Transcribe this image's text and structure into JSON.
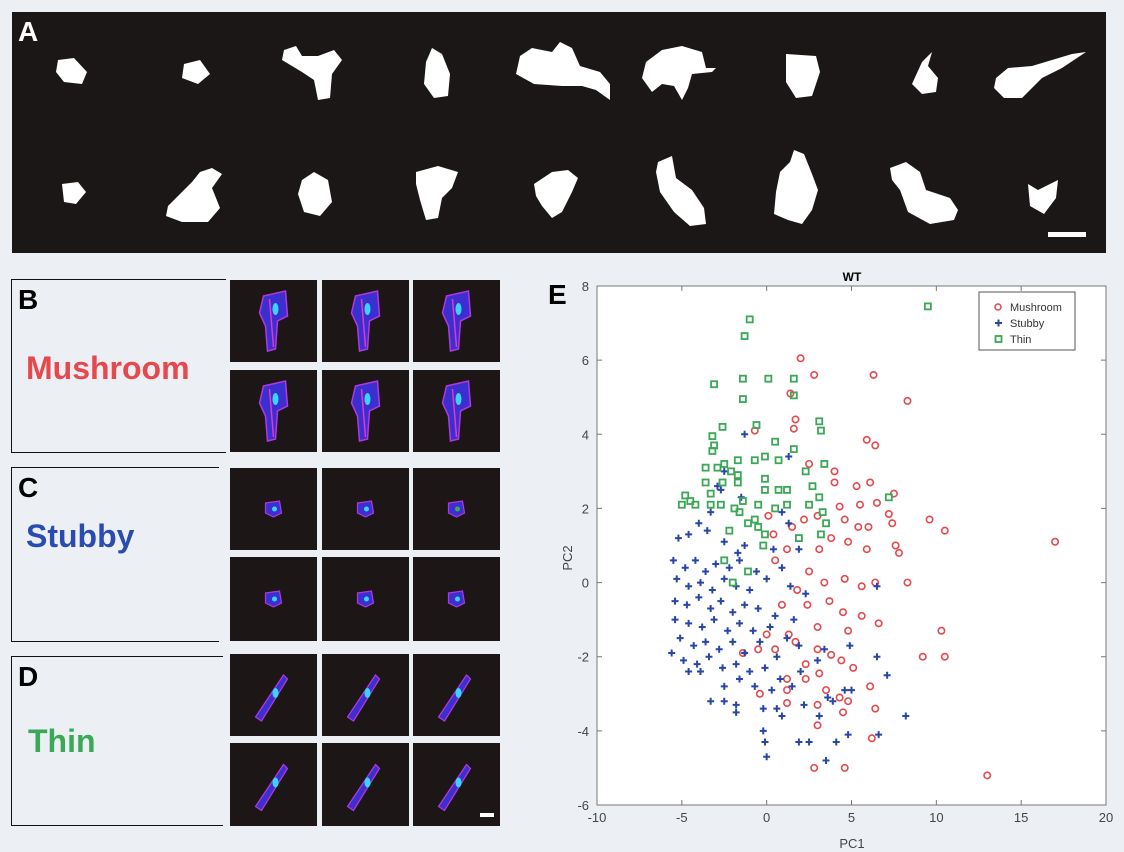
{
  "panels": {
    "a": {
      "label": "A"
    },
    "b": {
      "label": "B",
      "class_name": "Mushroom"
    },
    "c": {
      "label": "C",
      "class_name": "Stubby"
    },
    "d": {
      "label": "D",
      "class_name": "Thin"
    },
    "e": {
      "label": "E"
    }
  },
  "colors": {
    "mushroom": "#e5484d",
    "stubby": "#2846a8",
    "thin": "#3aa857",
    "background": "#ecf0f4"
  },
  "chart_data": {
    "type": "scatter",
    "title": "WT",
    "xlabel": "PC1",
    "ylabel": "PC2",
    "xlim": [
      -10,
      20
    ],
    "ylim": [
      -6,
      8
    ],
    "xticks": [
      "-10",
      "-5",
      "0",
      "5",
      "10",
      "15",
      "20"
    ],
    "yticks": [
      "-6",
      "-4",
      "-2",
      "0",
      "2",
      "4",
      "6",
      "8"
    ],
    "legend_position": "top-right",
    "grid": false,
    "series": [
      {
        "name": "Mushroom",
        "marker": "circle",
        "points": [
          [
            17,
            1.1
          ],
          [
            13,
            -5.2
          ],
          [
            10.5,
            1.4
          ],
          [
            9.6,
            1.7
          ],
          [
            10.3,
            -1.3
          ],
          [
            9.2,
            -2
          ],
          [
            10.5,
            -2
          ],
          [
            8.3,
            0
          ],
          [
            8.3,
            4.9
          ],
          [
            6.3,
            5.6
          ],
          [
            2.8,
            5.6
          ],
          [
            2,
            6.05
          ],
          [
            1.7,
            4.4
          ],
          [
            1.4,
            5.1
          ],
          [
            -0.7,
            4.1
          ],
          [
            5.9,
            3.85
          ],
          [
            6.4,
            3.7
          ],
          [
            4.6,
            -5
          ],
          [
            2.8,
            -5
          ],
          [
            6.2,
            -4.2
          ],
          [
            6.4,
            -3.4
          ],
          [
            1.6,
            4.15
          ],
          [
            2.5,
            3.2
          ],
          [
            4,
            3
          ],
          [
            4,
            2.7
          ],
          [
            5.3,
            2.6
          ],
          [
            6.1,
            2.7
          ],
          [
            7.5,
            2.4
          ],
          [
            6.5,
            2.15
          ],
          [
            5.5,
            2.1
          ],
          [
            4.3,
            2.05
          ],
          [
            7.2,
            1.85
          ],
          [
            7.4,
            1.6
          ],
          [
            6,
            1.5
          ],
          [
            5.4,
            1.5
          ],
          [
            4.6,
            1.7
          ],
          [
            3,
            1.8
          ],
          [
            2.2,
            1.7
          ],
          [
            1.5,
            1.5
          ],
          [
            0.1,
            1.8
          ],
          [
            0.4,
            1.3
          ],
          [
            3.8,
            1.2
          ],
          [
            4.8,
            1.1
          ],
          [
            5.9,
            0.9
          ],
          [
            7.6,
            1
          ],
          [
            7.8,
            0.8
          ],
          [
            3.1,
            0.9
          ],
          [
            1.2,
            0.9
          ],
          [
            0.5,
            0.6
          ],
          [
            2.5,
            0.3
          ],
          [
            4.6,
            0.1
          ],
          [
            5.6,
            -0.1
          ],
          [
            6.4,
            0
          ],
          [
            3.4,
            0
          ],
          [
            1.8,
            -0.2
          ],
          [
            0.9,
            -0.6
          ],
          [
            2.4,
            -0.6
          ],
          [
            3.7,
            -0.5
          ],
          [
            4.5,
            -0.8
          ],
          [
            5.6,
            -0.9
          ],
          [
            6.6,
            -1.1
          ],
          [
            4.8,
            -1.3
          ],
          [
            3,
            -1.2
          ],
          [
            1.3,
            -1.4
          ],
          [
            0,
            -1.4
          ],
          [
            -0.5,
            -1.8
          ],
          [
            0.5,
            -1.8
          ],
          [
            1.7,
            -1.6
          ],
          [
            3,
            -1.8
          ],
          [
            4.4,
            -2.1
          ],
          [
            5.1,
            -2.3
          ],
          [
            3.8,
            -1.95
          ],
          [
            2.3,
            -2.2
          ],
          [
            1.2,
            -2.6
          ],
          [
            2.3,
            -2.6
          ],
          [
            3.1,
            -2.45
          ],
          [
            6.1,
            -2.8
          ],
          [
            1.2,
            -2.9
          ],
          [
            3.5,
            -2.9
          ],
          [
            4.3,
            -3.1
          ],
          [
            4.8,
            -3.2
          ],
          [
            1.2,
            -3.25
          ],
          [
            3,
            -3.3
          ],
          [
            4.5,
            -3.5
          ],
          [
            3,
            -3.85
          ],
          [
            -0.4,
            -3
          ],
          [
            -1.4,
            -1.9
          ]
        ]
      },
      {
        "name": "Stubby",
        "marker": "plus",
        "points": [
          [
            8.2,
            -3.6
          ],
          [
            7.1,
            -2.5
          ],
          [
            6.6,
            -4.1
          ],
          [
            3.5,
            -4.8
          ],
          [
            0,
            -4.7
          ],
          [
            -1.3,
            4
          ],
          [
            1.3,
            3.4
          ],
          [
            -2.7,
            2.5
          ],
          [
            -1.5,
            2.3
          ],
          [
            -3.3,
            1.9
          ],
          [
            -4,
            1.6
          ],
          [
            -4.6,
            1.3
          ],
          [
            -5.2,
            1.2
          ],
          [
            -3.5,
            1.4
          ],
          [
            -2.5,
            1.1
          ],
          [
            -1.3,
            1
          ],
          [
            0.4,
            0.9
          ],
          [
            1.9,
            0.9
          ],
          [
            1.3,
            1.6
          ],
          [
            -5.5,
            0.6
          ],
          [
            -4.8,
            0.4
          ],
          [
            -4.2,
            0.6
          ],
          [
            -3.6,
            0.3
          ],
          [
            -3,
            0.5
          ],
          [
            -2.2,
            0.4
          ],
          [
            -1.6,
            0.6
          ],
          [
            -0.6,
            0.3
          ],
          [
            0.9,
            0.4
          ],
          [
            -5.3,
            0.1
          ],
          [
            -4.6,
            -0.1
          ],
          [
            -3.9,
            0
          ],
          [
            -3.2,
            -0.2
          ],
          [
            -2.5,
            0.1
          ],
          [
            -1.8,
            -0.1
          ],
          [
            -1,
            -0.2
          ],
          [
            0,
            0.1
          ],
          [
            1.4,
            -0.1
          ],
          [
            2.3,
            -0.3
          ],
          [
            -5.4,
            -0.5
          ],
          [
            -4.7,
            -0.6
          ],
          [
            -4,
            -0.4
          ],
          [
            -3.3,
            -0.7
          ],
          [
            -2.7,
            -0.5
          ],
          [
            -2,
            -0.8
          ],
          [
            -1.3,
            -0.6
          ],
          [
            -0.5,
            -0.7
          ],
          [
            0.5,
            -0.9
          ],
          [
            1.6,
            -1
          ],
          [
            -5.4,
            -1
          ],
          [
            -4.6,
            -1.1
          ],
          [
            -3.8,
            -1.2
          ],
          [
            -3.1,
            -1
          ],
          [
            -2.3,
            -1.3
          ],
          [
            -1.6,
            -1.1
          ],
          [
            -0.8,
            -1.3
          ],
          [
            0.2,
            -1.2
          ],
          [
            1.2,
            -1.5
          ],
          [
            -5.1,
            -1.5
          ],
          [
            -4.3,
            -1.7
          ],
          [
            -3.6,
            -1.6
          ],
          [
            -2.8,
            -1.8
          ],
          [
            -2,
            -1.6
          ],
          [
            -1.3,
            -1.9
          ],
          [
            -0.4,
            -1.6
          ],
          [
            0.6,
            -2
          ],
          [
            1.9,
            -1.7
          ],
          [
            3.4,
            -1.8
          ],
          [
            4.9,
            -1.7
          ],
          [
            -5.6,
            -1.9
          ],
          [
            -4.9,
            -2.1
          ],
          [
            -4.1,
            -2.2
          ],
          [
            -3.4,
            -2
          ],
          [
            -2.6,
            -2.3
          ],
          [
            -1.8,
            -2.2
          ],
          [
            -1,
            -2.4
          ],
          [
            -0.1,
            -2.3
          ],
          [
            0.8,
            -2.6
          ],
          [
            2,
            -2.4
          ],
          [
            3,
            -2.1
          ],
          [
            -4.6,
            -2.4
          ],
          [
            -3.9,
            -2.4
          ],
          [
            -2.5,
            -2.8
          ],
          [
            -1.6,
            -2.6
          ],
          [
            -0.7,
            -2.8
          ],
          [
            0.3,
            -2.9
          ],
          [
            1.5,
            -2.8
          ],
          [
            2.2,
            -3.3
          ],
          [
            3.6,
            -3.1
          ],
          [
            4.6,
            -2.9
          ],
          [
            5,
            -2.9
          ],
          [
            -3.3,
            -3.2
          ],
          [
            -2.5,
            -3.2
          ],
          [
            -1.8,
            -3.3
          ],
          [
            -1.8,
            -3.5
          ],
          [
            -0.2,
            -3.4
          ],
          [
            0.6,
            -3.4
          ],
          [
            0.9,
            -3.6
          ],
          [
            3.1,
            -3.6
          ],
          [
            3.9,
            -3.2
          ],
          [
            -0.2,
            -4
          ],
          [
            -0.1,
            -4.3
          ],
          [
            1.9,
            -4.3
          ],
          [
            2.5,
            -4.3
          ],
          [
            4.1,
            -4.3
          ],
          [
            4.8,
            -4.1
          ],
          [
            -2.5,
            3
          ],
          [
            -2.9,
            2.6
          ],
          [
            -1.7,
            0.8
          ],
          [
            0.9,
            1.9
          ],
          [
            6.5,
            -2
          ],
          [
            6.5,
            -0.1
          ]
        ]
      },
      {
        "name": "Thin",
        "marker": "square",
        "points": [
          [
            9.5,
            7.45
          ],
          [
            -1,
            7.1
          ],
          [
            -1.3,
            6.65
          ],
          [
            -3.1,
            5.35
          ],
          [
            -1.4,
            5.5
          ],
          [
            0.1,
            5.5
          ],
          [
            1.6,
            5.5
          ],
          [
            -1.4,
            4.95
          ],
          [
            1.6,
            5.05
          ],
          [
            3.1,
            4.35
          ],
          [
            3.2,
            4.1
          ],
          [
            -0.6,
            4.25
          ],
          [
            -2.6,
            4.2
          ],
          [
            -3.2,
            3.95
          ],
          [
            -3.1,
            3.7
          ],
          [
            -3.2,
            3.55
          ],
          [
            0.5,
            3.8
          ],
          [
            1.6,
            3.6
          ],
          [
            3.4,
            3.2
          ],
          [
            7.2,
            2.3
          ],
          [
            -3.6,
            3.1
          ],
          [
            -2.9,
            3.1
          ],
          [
            -2.5,
            3.2
          ],
          [
            -1.7,
            3.3
          ],
          [
            -0.1,
            3.4
          ],
          [
            -0.7,
            3.3
          ],
          [
            0.7,
            3.3
          ],
          [
            -2.1,
            3
          ],
          [
            -1.7,
            2.9
          ],
          [
            -2.6,
            2.7
          ],
          [
            -1.7,
            2.7
          ],
          [
            -0.1,
            2.8
          ],
          [
            2.3,
            3
          ],
          [
            -3.6,
            2.7
          ],
          [
            -3.3,
            2.4
          ],
          [
            -1.4,
            2.2
          ],
          [
            -0.1,
            2.5
          ],
          [
            0.7,
            2.5
          ],
          [
            1.2,
            2.5
          ],
          [
            2.7,
            2.6
          ],
          [
            3.1,
            2.3
          ],
          [
            -4.8,
            2.35
          ],
          [
            -4.5,
            2.2
          ],
          [
            -5,
            2.1
          ],
          [
            -4.2,
            2.1
          ],
          [
            -3.3,
            2.1
          ],
          [
            -2.7,
            2.1
          ],
          [
            -1.9,
            2
          ],
          [
            -0.5,
            2.1
          ],
          [
            0.5,
            2
          ],
          [
            1.2,
            2.1
          ],
          [
            2.5,
            2.1
          ],
          [
            -1.6,
            1.9
          ],
          [
            -1.1,
            1.6
          ],
          [
            -0.7,
            1.7
          ],
          [
            -0.5,
            1.5
          ],
          [
            3.3,
            1.9
          ],
          [
            3.5,
            1.6
          ],
          [
            -2.2,
            1.4
          ],
          [
            -0.1,
            1.3
          ],
          [
            -0.2,
            1
          ],
          [
            1.9,
            1.2
          ],
          [
            3.2,
            1.3
          ],
          [
            -2.5,
            0.6
          ],
          [
            -1.1,
            0.3
          ],
          [
            -2,
            0
          ]
        ]
      }
    ]
  }
}
